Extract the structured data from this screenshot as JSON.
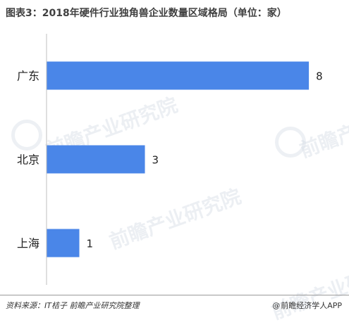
{
  "header": {
    "title": "图表3：2018年硬件行业独角兽企业数量区域格局（单位：家）"
  },
  "watermark": {
    "text": "前瞻产业研究院"
  },
  "footer": {
    "source": "资料来源：IT桔子  前瞻产业研究院整理",
    "credit": "前瞻经济学人APP",
    "credit_icon": "at-icon"
  },
  "colors": {
    "bar": "#4a86e8",
    "axis": "#bfbfbf",
    "text": "#222222"
  },
  "chart_data": {
    "type": "bar",
    "orientation": "horizontal",
    "categories": [
      "广东",
      "北京",
      "上海"
    ],
    "values": [
      8,
      3,
      1
    ],
    "xlim": [
      0,
      8.6
    ],
    "grid": false,
    "legend": "none"
  }
}
